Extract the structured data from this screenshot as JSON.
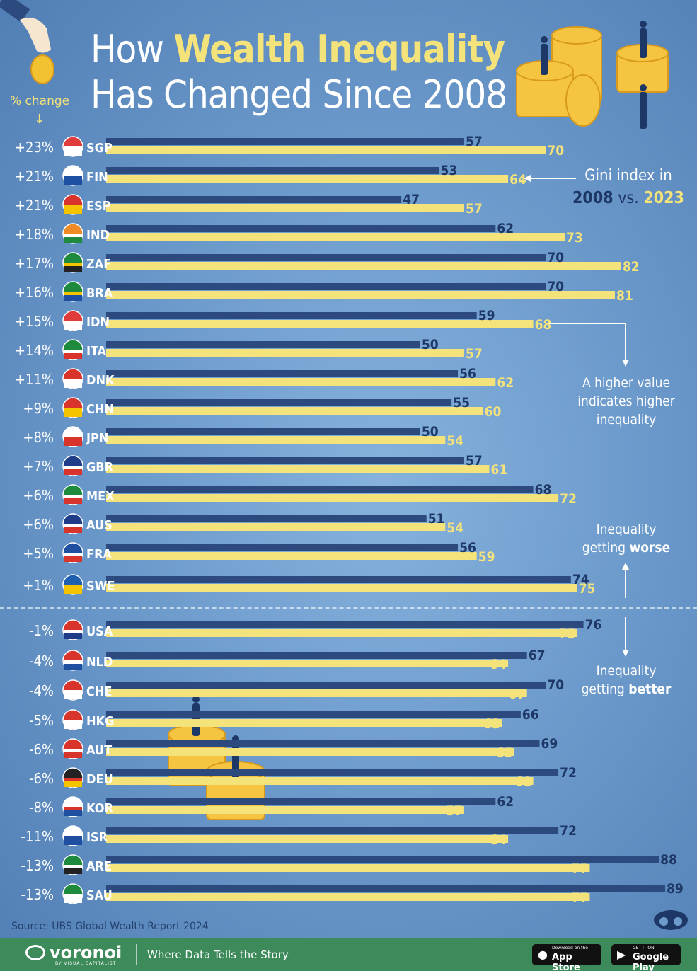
{
  "title": {
    "line1_pre": "How ",
    "line1_highlight": "Wealth Inequality",
    "line2": "Has Changed Since 2008"
  },
  "pct_change_label": "% change",
  "colors": {
    "bar_2008": "#2c4a7e",
    "bar_2023": "#f4e27a",
    "background": "#6d9bcc",
    "text_dark": "#1d3767",
    "footer": "#3d8a5b"
  },
  "notes": {
    "legend_line1": "Gini index in",
    "legend_year1": "2008",
    "legend_vs": " vs. ",
    "legend_year2": "2023",
    "higher_value": "A higher value indicates higher inequality",
    "worse_pre": "Inequality getting ",
    "worse_word": "worse",
    "better_pre": "Inequality getting ",
    "better_word": "better"
  },
  "source": "Source: UBS Global Wealth Report 2024",
  "footer": {
    "logo": "voronoi",
    "logo_sub": "BY VISUAL CAPITALIST",
    "tagline": "Where Data Tells the Story",
    "appstore_small": "Download on the",
    "appstore_big": "App Store",
    "googleplay_small": "GET IT ON",
    "googleplay_big": "Google Play"
  },
  "chart_data": {
    "type": "bar",
    "orientation": "horizontal",
    "categories": [
      "SGP",
      "FIN",
      "ESP",
      "IND",
      "ZAF",
      "BRA",
      "IDN",
      "ITA",
      "DNK",
      "CHN",
      "JPN",
      "GBR",
      "MEX",
      "AUS",
      "FRA",
      "SWE",
      "USA",
      "NLD",
      "CHE",
      "HKG",
      "AUT",
      "DEU",
      "KOR",
      "ISR",
      "ARE",
      "SAU"
    ],
    "pct_change": [
      "+23%",
      "+21%",
      "+21%",
      "+18%",
      "+17%",
      "+16%",
      "+15%",
      "+14%",
      "+11%",
      "+9%",
      "+8%",
      "+7%",
      "+6%",
      "+6%",
      "+5%",
      "+1%",
      "-1%",
      "-4%",
      "-4%",
      "-5%",
      "-6%",
      "-6%",
      "-8%",
      "-11%",
      "-13%",
      "-13%"
    ],
    "series": [
      {
        "name": "2008",
        "values": [
          57,
          53,
          47,
          62,
          70,
          70,
          59,
          50,
          56,
          55,
          50,
          57,
          68,
          51,
          56,
          74,
          76,
          67,
          70,
          66,
          69,
          72,
          62,
          72,
          88,
          89
        ]
      },
      {
        "name": "2023",
        "values": [
          70,
          64,
          57,
          73,
          82,
          81,
          68,
          57,
          62,
          60,
          54,
          61,
          72,
          54,
          59,
          75,
          75,
          64,
          67,
          63,
          65,
          68,
          57,
          64,
          77,
          77
        ]
      }
    ],
    "flag_colors": [
      [
        "#e03c3c",
        "#ffffff"
      ],
      [
        "#ffffff",
        "#1f4fa0"
      ],
      [
        "#d8342c",
        "#f5c400"
      ],
      [
        "#f08a24",
        "#ffffff",
        "#1d8a3d"
      ],
      [
        "#1d8a3d",
        "#f5c400",
        "#222222"
      ],
      [
        "#1d8a3d",
        "#f5c400",
        "#1f4fa0"
      ],
      [
        "#e03c3c",
        "#ffffff"
      ],
      [
        "#1d8a3d",
        "#ffffff",
        "#d8342c"
      ],
      [
        "#d8342c",
        "#ffffff"
      ],
      [
        "#d8342c",
        "#f5c400"
      ],
      [
        "#ffffff",
        "#d8342c"
      ],
      [
        "#1f3c88",
        "#ffffff",
        "#d8342c"
      ],
      [
        "#1d8a3d",
        "#ffffff",
        "#d8342c"
      ],
      [
        "#1f3c88",
        "#ffffff",
        "#d8342c"
      ],
      [
        "#1f4fa0",
        "#ffffff",
        "#d8342c"
      ],
      [
        "#1f5fb0",
        "#f5c400"
      ],
      [
        "#d8342c",
        "#ffffff",
        "#1f3c88"
      ],
      [
        "#d8342c",
        "#ffffff",
        "#1f4fa0"
      ],
      [
        "#d8342c",
        "#ffffff"
      ],
      [
        "#d8342c",
        "#ffffff"
      ],
      [
        "#d8342c",
        "#ffffff",
        "#d8342c"
      ],
      [
        "#222222",
        "#d8342c",
        "#f5c400"
      ],
      [
        "#ffffff",
        "#d8342c",
        "#1f4fa0"
      ],
      [
        "#ffffff",
        "#1f4fa0"
      ],
      [
        "#1d8a3d",
        "#ffffff",
        "#222222",
        "#d8342c"
      ],
      [
        "#1d8a3d",
        "#ffffff"
      ]
    ]
  }
}
